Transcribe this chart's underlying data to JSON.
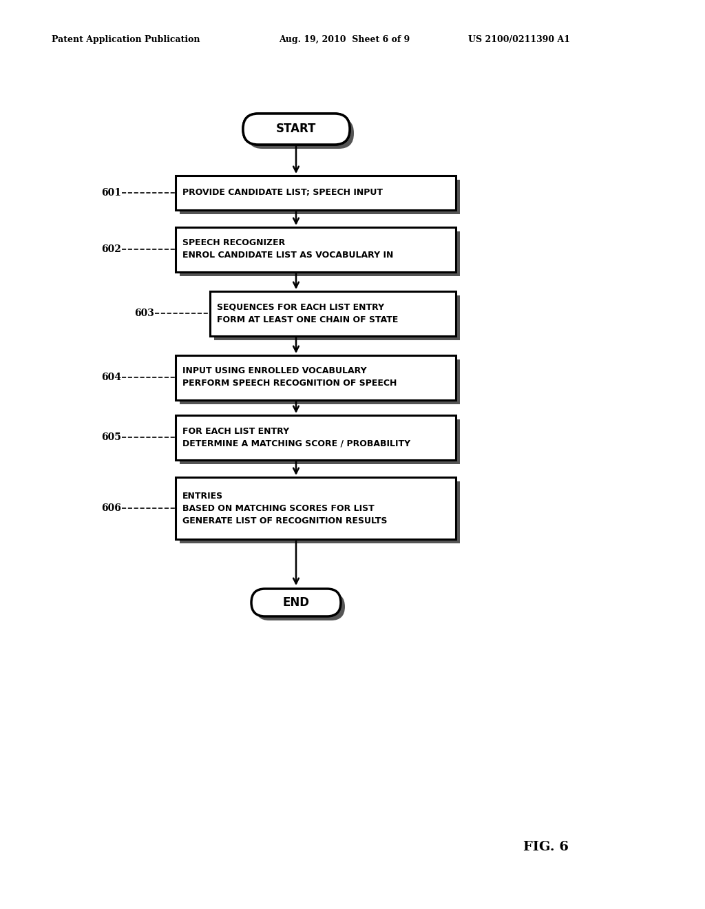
{
  "bg_color": "#ffffff",
  "header_left": "Patent Application Publication",
  "header_mid": "Aug. 19, 2010  Sheet 6 of 9",
  "header_right": "US 2100/0211390 A1",
  "fig_label": "FIG. 6",
  "start_label": "START",
  "end_label": "END",
  "steps": [
    {
      "id": "601",
      "lines": [
        "PROVIDE CANDIDATE LIST; SPEECH INPUT"
      ]
    },
    {
      "id": "602",
      "lines": [
        "ENROL CANDIDATE LIST AS VOCABULARY IN",
        "SPEECH RECOGNIZER"
      ]
    },
    {
      "id": "603",
      "lines": [
        "FORM AT LEAST ONE CHAIN OF STATE",
        "SEQUENCES FOR EACH LIST ENTRY"
      ]
    },
    {
      "id": "604",
      "lines": [
        "PERFORM SPEECH RECOGNITION OF SPEECH",
        "INPUT USING ENROLLED VOCABULARY"
      ]
    },
    {
      "id": "605",
      "lines": [
        "DETERMINE A MATCHING SCORE / PROBABILITY",
        "FOR EACH LIST ENTRY"
      ]
    },
    {
      "id": "606",
      "lines": [
        "GENERATE LIST OF RECOGNITION RESULTS",
        "BASED ON MATCHING SCORES FOR LIST",
        "ENTRIES"
      ]
    }
  ],
  "header_left_text": "Patent Application Publication",
  "header_mid_text": "Aug. 19, 2010  Sheet 6 of 9",
  "header_right_text": "US 2100/0211390 A1"
}
